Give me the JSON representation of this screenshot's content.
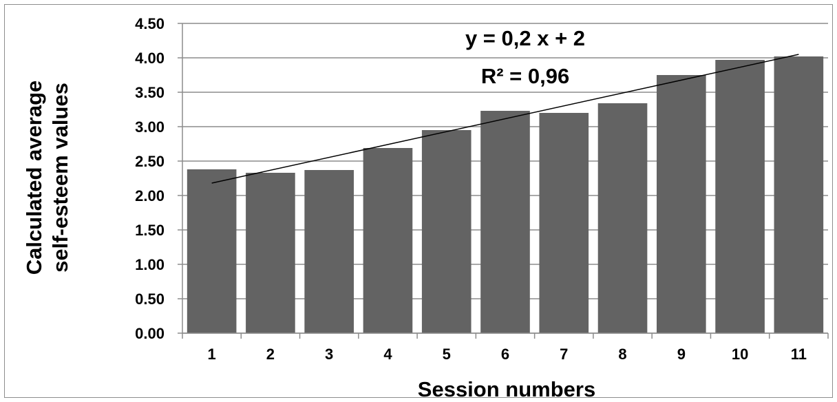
{
  "chart_data": {
    "type": "bar",
    "categories": [
      "1",
      "2",
      "3",
      "4",
      "5",
      "6",
      "7",
      "8",
      "9",
      "10",
      "11"
    ],
    "values": [
      2.38,
      2.33,
      2.37,
      2.69,
      2.95,
      3.23,
      3.2,
      3.34,
      3.75,
      3.97,
      4.02
    ],
    "xlabel": "Session numbers",
    "ylabel_lines": [
      "Calculated average",
      "self-esteem values"
    ],
    "ylim": [
      0,
      4.5
    ],
    "yticks": [
      0,
      0.5,
      1.0,
      1.5,
      2.0,
      2.5,
      3.0,
      3.5,
      4.0,
      4.5
    ],
    "ytick_labels": [
      "0.00",
      "0.50",
      "1.00",
      "1.50",
      "2.00",
      "2.50",
      "3.00",
      "3.50",
      "4.00",
      "4.50"
    ],
    "grid": true,
    "legend": "none",
    "bar_color": "#636363",
    "trendline": {
      "type": "linear",
      "start_value": 2.18,
      "end_value": 4.05,
      "color": "#000000"
    },
    "annotations": [
      "y = 0,2 x + 2",
      "R² = 0,96"
    ]
  }
}
